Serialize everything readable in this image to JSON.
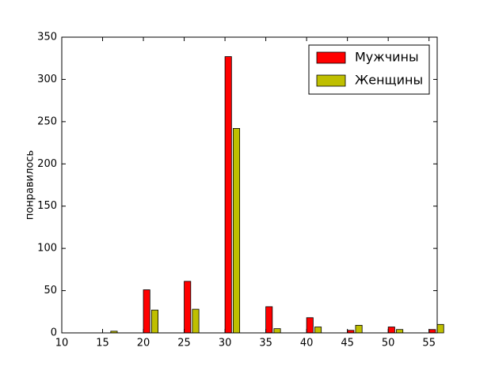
{
  "chart_data": {
    "type": "bar",
    "ylabel": "понравилось",
    "series": [
      {
        "name": "Мужчины",
        "color": "#ff0000",
        "x": [
          15,
          20,
          25,
          30,
          35,
          40,
          45,
          50,
          55
        ],
        "values": [
          0,
          51,
          61,
          327,
          31,
          18,
          3,
          7,
          4
        ]
      },
      {
        "name": "Женщины",
        "color": "#bfbf00",
        "x": [
          16,
          21,
          26,
          31,
          36,
          41,
          46,
          51,
          56
        ],
        "values": [
          2,
          27,
          28,
          242,
          5,
          7,
          9,
          4,
          10
        ]
      }
    ],
    "xlim": [
      10,
      56
    ],
    "xticks": [
      10,
      15,
      20,
      25,
      30,
      35,
      40,
      45,
      50,
      55
    ],
    "ylim": [
      0,
      350
    ],
    "yticks": [
      0,
      50,
      100,
      150,
      200,
      250,
      300,
      350
    ],
    "legend": "upper right"
  }
}
